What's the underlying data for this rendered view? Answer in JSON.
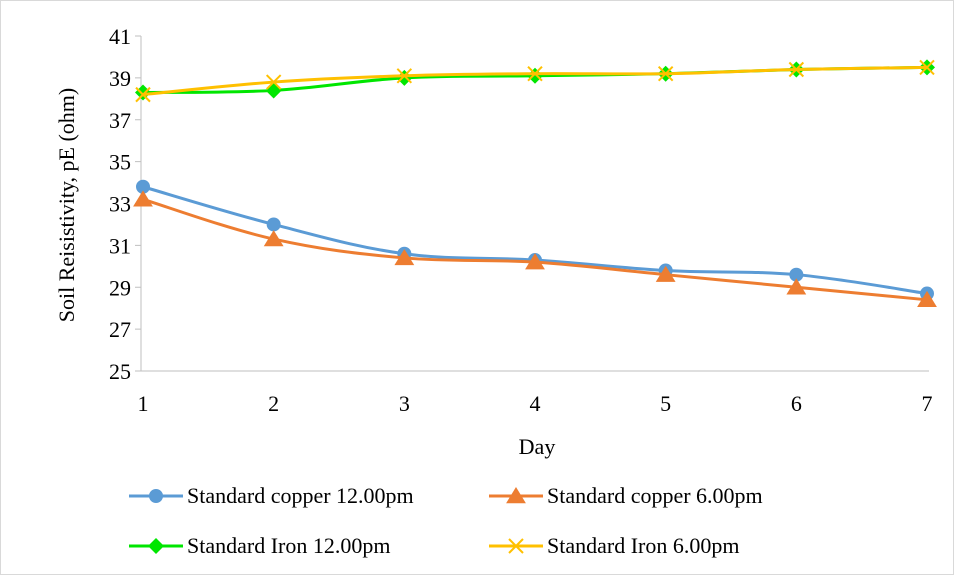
{
  "chart_data": {
    "type": "line",
    "title": "",
    "xlabel": "Day",
    "ylabel": "Soil Reisistivity, pE (ohm)",
    "x": [
      1,
      2,
      3,
      4,
      5,
      6,
      7
    ],
    "x_tick_labels": [
      "1",
      "2",
      "3",
      "4",
      "5",
      "6",
      "7"
    ],
    "ylim": [
      25,
      41
    ],
    "y_ticks": [
      25,
      27,
      29,
      31,
      33,
      35,
      37,
      39,
      41
    ],
    "y_tick_labels": [
      "25",
      "27",
      "29",
      "31",
      "33",
      "35",
      "37",
      "39",
      "41"
    ],
    "grid": false,
    "legend_position": "bottom",
    "series": [
      {
        "name": "Standard copper 12.00pm",
        "color": "#5b9bd5",
        "marker": "circle",
        "values": [
          33.8,
          32.0,
          30.6,
          30.3,
          29.8,
          29.6,
          28.7
        ]
      },
      {
        "name": "Standard copper 6.00pm",
        "color": "#ed7d31",
        "marker": "triangle",
        "values": [
          33.2,
          31.3,
          30.4,
          30.2,
          29.6,
          29.0,
          28.4
        ]
      },
      {
        "name": "Standard Iron 12.00pm",
        "color": "#00e600",
        "marker": "diamond",
        "values": [
          38.3,
          38.4,
          39.0,
          39.1,
          39.2,
          39.4,
          39.5
        ]
      },
      {
        "name": "Standard Iron 6.00pm",
        "color": "#ffc000",
        "marker": "x",
        "values": [
          38.2,
          38.8,
          39.1,
          39.2,
          39.2,
          39.4,
          39.5
        ]
      }
    ]
  }
}
